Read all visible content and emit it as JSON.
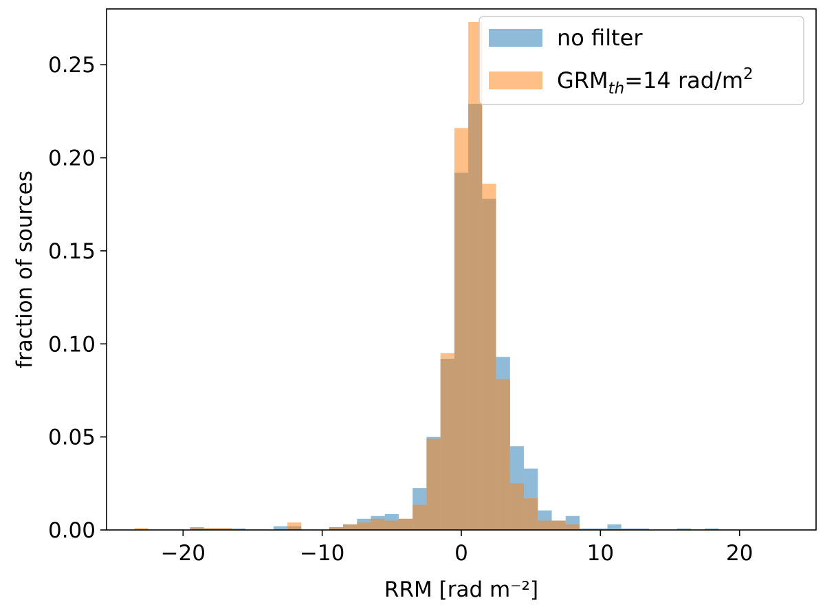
{
  "chart_data": {
    "type": "bar",
    "subtype": "overlaid-histogram",
    "bin_width": 2,
    "xlabel": "RRM [rad m⁻²]",
    "ylabel": "fraction of sources",
    "xlim": [
      -25.5,
      25.5
    ],
    "ylim": [
      0,
      0.28
    ],
    "xticks": [
      -20,
      -10,
      0,
      10,
      20
    ],
    "xtick_labels": [
      "−20",
      "−10",
      "0",
      "10",
      "20"
    ],
    "yticks": [
      0.0,
      0.05,
      0.1,
      0.15,
      0.2,
      0.25
    ],
    "ytick_labels": [
      "0.00",
      "0.05",
      "0.10",
      "0.15",
      "0.20",
      "0.25"
    ],
    "grid": false,
    "legend_position": "top-right",
    "legend": [
      {
        "series": "no_filter",
        "text": "no filter"
      },
      {
        "series": "grm",
        "text_prefix": "GRM",
        "text_sub": "th",
        "text_mid": "=14 rad/m",
        "text_sup": "2"
      }
    ],
    "series": [
      {
        "key": "no_filter",
        "name": "no filter",
        "color": "#1f77b4",
        "opacity": 0.5,
        "bins": [
          {
            "x0": -19.5,
            "x1": -18.5,
            "value": 0.0015
          },
          {
            "x0": -18.5,
            "x1": -16.5,
            "value": 0.0008
          },
          {
            "x0": -16.5,
            "x1": -15.5,
            "value": 0.0008
          },
          {
            "x0": -13.5,
            "x1": -12.5,
            "value": 0.002
          },
          {
            "x0": -12.5,
            "x1": -11.5,
            "value": 0.002
          },
          {
            "x0": -9.5,
            "x1": -8.5,
            "value": 0.0015
          },
          {
            "x0": -8.5,
            "x1": -7.5,
            "value": 0.003
          },
          {
            "x0": -7.5,
            "x1": -6.5,
            "value": 0.006
          },
          {
            "x0": -6.5,
            "x1": -5.5,
            "value": 0.0075
          },
          {
            "x0": -5.5,
            "x1": -4.5,
            "value": 0.0085
          },
          {
            "x0": -4.5,
            "x1": -3.5,
            "value": 0.006
          },
          {
            "x0": -3.5,
            "x1": -2.5,
            "value": 0.0225
          },
          {
            "x0": -2.5,
            "x1": -1.5,
            "value": 0.05
          },
          {
            "x0": -1.5,
            "x1": -0.5,
            "value": 0.092
          },
          {
            "x0": -0.5,
            "x1": 0.5,
            "value": 0.192
          },
          {
            "x0": 0.5,
            "x1": 1.5,
            "value": 0.229
          },
          {
            "x0": 1.5,
            "x1": 2.5,
            "value": 0.178
          },
          {
            "x0": 2.5,
            "x1": 3.5,
            "value": 0.093
          },
          {
            "x0": 3.5,
            "x1": 4.5,
            "value": 0.045
          },
          {
            "x0": 4.5,
            "x1": 5.5,
            "value": 0.033
          },
          {
            "x0": 5.5,
            "x1": 6.5,
            "value": 0.0105
          },
          {
            "x0": 6.5,
            "x1": 7.5,
            "value": 0.005
          },
          {
            "x0": 7.5,
            "x1": 8.5,
            "value": 0.0075
          },
          {
            "x0": 8.5,
            "x1": 9.5,
            "value": 0.0008
          },
          {
            "x0": 9.5,
            "x1": 10.5,
            "value": 0.0008
          },
          {
            "x0": 10.5,
            "x1": 11.5,
            "value": 0.003
          },
          {
            "x0": 11.5,
            "x1": 12.5,
            "value": 0.0008
          },
          {
            "x0": 12.5,
            "x1": 13.5,
            "value": 0.0008
          },
          {
            "x0": 15.5,
            "x1": 16.5,
            "value": 0.0008
          },
          {
            "x0": 17.5,
            "x1": 18.5,
            "value": 0.0008
          }
        ]
      },
      {
        "key": "grm",
        "name": "GRM_th=14 rad/m²",
        "color": "#ff7f0e",
        "opacity": 0.5,
        "bins": [
          {
            "x0": -23.5,
            "x1": -22.5,
            "value": 0.001
          },
          {
            "x0": -19.5,
            "x1": -18.5,
            "value": 0.001
          },
          {
            "x0": -18.5,
            "x1": -16.5,
            "value": 0.001
          },
          {
            "x0": -12.5,
            "x1": -11.5,
            "value": 0.004
          },
          {
            "x0": -9.5,
            "x1": -8.5,
            "value": 0.0015
          },
          {
            "x0": -8.5,
            "x1": -7.5,
            "value": 0.003
          },
          {
            "x0": -7.5,
            "x1": -6.5,
            "value": 0.004
          },
          {
            "x0": -6.5,
            "x1": -5.5,
            "value": 0.006
          },
          {
            "x0": -5.5,
            "x1": -4.5,
            "value": 0.005
          },
          {
            "x0": -4.5,
            "x1": -3.5,
            "value": 0.006
          },
          {
            "x0": -3.5,
            "x1": -2.5,
            "value": 0.0135
          },
          {
            "x0": -2.5,
            "x1": -1.5,
            "value": 0.049
          },
          {
            "x0": -1.5,
            "x1": -0.5,
            "value": 0.095
          },
          {
            "x0": -0.5,
            "x1": 0.5,
            "value": 0.216
          },
          {
            "x0": 0.5,
            "x1": 1.5,
            "value": 0.273
          },
          {
            "x0": 1.5,
            "x1": 2.5,
            "value": 0.186
          },
          {
            "x0": 2.5,
            "x1": 3.5,
            "value": 0.081
          },
          {
            "x0": 3.5,
            "x1": 4.5,
            "value": 0.025
          },
          {
            "x0": 4.5,
            "x1": 5.5,
            "value": 0.017
          },
          {
            "x0": 5.5,
            "x1": 6.5,
            "value": 0.005
          },
          {
            "x0": 6.5,
            "x1": 7.5,
            "value": 0.005
          },
          {
            "x0": 7.5,
            "x1": 8.5,
            "value": 0.003
          }
        ]
      }
    ]
  }
}
